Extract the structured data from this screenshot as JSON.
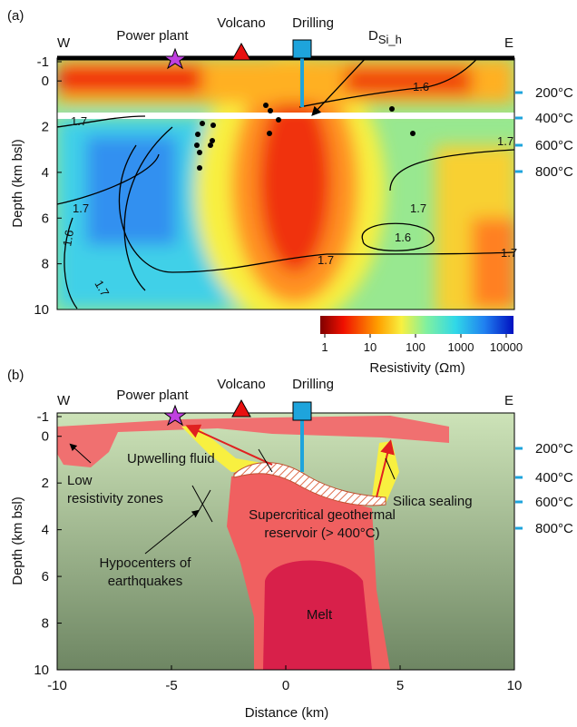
{
  "panel_a": {
    "label": "(a)",
    "west": "W",
    "east": "E",
    "markers": [
      "Power plant",
      "Volcano",
      "Drilling"
    ],
    "arrow_label": {
      "main": "D",
      "sub": "Si_h"
    },
    "y_label": "Depth (km bsl)",
    "yticks": [
      -1,
      0,
      2,
      4,
      6,
      8,
      10
    ],
    "temperatures": [
      "200°C",
      "400°C",
      "600°C",
      "800°C"
    ],
    "contour_labels": [
      "1.6",
      "1.7",
      "1.7",
      "1.7",
      "1.6",
      "1.7",
      "1.6",
      "1.7",
      "1.7",
      "1.7"
    ],
    "colorbar_ticks": [
      1,
      10,
      100,
      1000,
      10000
    ],
    "colorbar_label": "Resistivity (Ωm)"
  },
  "panel_b": {
    "label": "(b)",
    "west": "W",
    "east": "E",
    "markers": [
      "Power plant",
      "Volcano",
      "Drilling"
    ],
    "y_label": "Depth (km bsl)",
    "yticks": [
      -1,
      0,
      2,
      4,
      6,
      8,
      10
    ],
    "xticks": [
      -10,
      -5,
      0,
      5,
      10
    ],
    "x_label": "Distance (km)",
    "temperatures": [
      "200°C",
      "400°C",
      "600°C",
      "800°C"
    ],
    "annotations": {
      "upwelling": "Upwelling fluid",
      "low_res": [
        "Low",
        "resistivity zones"
      ],
      "silica": "Silica sealing",
      "reservoir": [
        "Supercritical geothermal",
        "reservoir (> 400°C)"
      ],
      "hypocenters": [
        "Hypocenters of",
        "earthquakes"
      ],
      "melt": "Melt"
    }
  }
}
